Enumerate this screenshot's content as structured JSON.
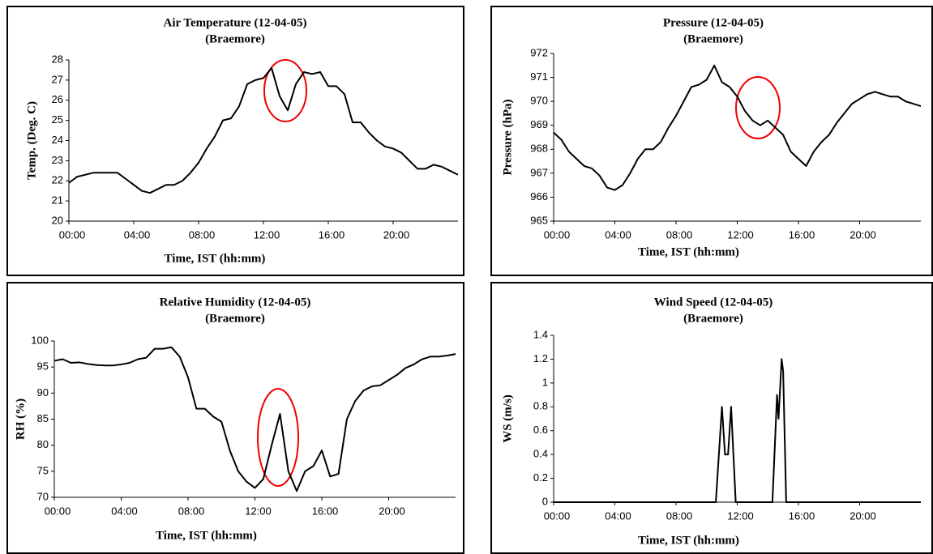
{
  "chart_data": [
    {
      "type": "line",
      "title": "Air Temperature (12-04-05)",
      "subtitle": "(Braemore)",
      "x_label": "Time, IST (hh:mm)",
      "y_label": "Temp. (Deg. C)",
      "x": [
        0,
        0.5,
        1,
        1.5,
        2,
        2.5,
        3,
        3.5,
        4,
        4.5,
        5,
        5.5,
        6,
        6.5,
        7,
        7.5,
        8,
        8.5,
        9,
        9.5,
        10,
        10.5,
        11,
        11.5,
        12,
        12.5,
        13,
        13.5,
        14,
        14.5,
        15,
        15.5,
        16,
        16.5,
        17,
        17.5,
        18,
        18.5,
        19,
        19.5,
        20,
        20.5,
        21,
        21.5,
        22,
        22.5,
        23,
        23.5,
        24
      ],
      "values": [
        21.9,
        22.2,
        22.3,
        22.4,
        22.4,
        22.4,
        22.4,
        22.1,
        21.8,
        21.5,
        21.4,
        21.6,
        21.8,
        21.8,
        22.0,
        22.4,
        22.9,
        23.6,
        24.2,
        25.0,
        25.1,
        25.7,
        26.8,
        27.0,
        27.1,
        27.6,
        26.2,
        25.5,
        26.8,
        27.4,
        27.3,
        27.4,
        26.7,
        26.7,
        26.3,
        24.9,
        24.9,
        24.4,
        24.0,
        23.7,
        23.6,
        23.4,
        23.0,
        22.6,
        22.6,
        22.8,
        22.7,
        22.5,
        22.3
      ],
      "color": "#000000",
      "xlim": [
        0,
        24
      ],
      "xticks": [
        {
          "value": 0,
          "label": "00:00"
        },
        {
          "value": 4,
          "label": "04:00"
        },
        {
          "value": 8,
          "label": "08:00"
        },
        {
          "value": 12,
          "label": "12:00"
        },
        {
          "value": 16,
          "label": "16:00"
        },
        {
          "value": 20,
          "label": "20:00"
        }
      ],
      "ylim": [
        20,
        28
      ],
      "yticks": [
        20,
        21,
        22,
        23,
        24,
        25,
        26,
        27,
        28
      ],
      "grid": false
    },
    {
      "type": "line",
      "title": "Pressure (12-04-05)",
      "subtitle": "(Braemore)",
      "x_label": "Time, IST (hh:mm)",
      "y_label": "Pressure (hPa)",
      "x": [
        0,
        0.5,
        1,
        1.5,
        2,
        2.5,
        3,
        3.5,
        4,
        4.5,
        5,
        5.5,
        6,
        6.5,
        7,
        7.5,
        8,
        8.5,
        9,
        9.5,
        10,
        10.5,
        11,
        11.5,
        12,
        12.5,
        13,
        13.5,
        14,
        14.5,
        15,
        15.5,
        16,
        16.5,
        17,
        17.5,
        18,
        18.5,
        19,
        19.5,
        20,
        20.5,
        21,
        21.5,
        22,
        22.5,
        23,
        23.5,
        24
      ],
      "values": [
        968.7,
        968.4,
        967.9,
        967.6,
        967.3,
        967.2,
        966.9,
        966.4,
        966.3,
        966.5,
        967.0,
        967.6,
        968.0,
        968.0,
        968.3,
        968.9,
        969.4,
        970.0,
        970.6,
        970.7,
        970.9,
        971.5,
        970.8,
        970.6,
        970.2,
        969.6,
        969.2,
        969.0,
        969.2,
        968.9,
        968.6,
        967.9,
        967.6,
        967.3,
        967.9,
        968.3,
        968.6,
        969.1,
        969.5,
        969.9,
        970.1,
        970.3,
        970.4,
        970.3,
        970.2,
        970.2,
        970.0,
        969.9,
        969.8
      ],
      "color": "#000000",
      "xlim": [
        0,
        24
      ],
      "xticks": [
        {
          "value": 0,
          "label": "00:00"
        },
        {
          "value": 4,
          "label": "04:00"
        },
        {
          "value": 8,
          "label": "08:00"
        },
        {
          "value": 12,
          "label": "12:00"
        },
        {
          "value": 16,
          "label": "16:00"
        },
        {
          "value": 20,
          "label": "20:00"
        }
      ],
      "ylim": [
        965,
        972
      ],
      "yticks": [
        965,
        966,
        967,
        968,
        969,
        970,
        971,
        972
      ],
      "grid": false
    },
    {
      "type": "line",
      "title": "Relative Humidity (12-04-05)",
      "subtitle": "(Braemore)",
      "x_label": "Time, IST (hh:mm)",
      "y_label": "RH (%)",
      "x": [
        0,
        0.5,
        1,
        1.5,
        2,
        2.5,
        3,
        3.5,
        4,
        4.5,
        5,
        5.5,
        6,
        6.5,
        7,
        7.5,
        8,
        8.5,
        9,
        9.5,
        10,
        10.5,
        11,
        11.5,
        12,
        12.5,
        13,
        13.5,
        14,
        14.5,
        15,
        15.5,
        16,
        16.5,
        17,
        17.5,
        18,
        18.5,
        19,
        19.5,
        20,
        20.5,
        21,
        21.5,
        22,
        22.5,
        23,
        23.5,
        24
      ],
      "values": [
        96.2,
        96.5,
        95.8,
        95.9,
        95.6,
        95.4,
        95.3,
        95.3,
        95.5,
        95.8,
        96.5,
        96.8,
        98.5,
        98.5,
        98.8,
        97.0,
        93.0,
        87.0,
        87.0,
        85.5,
        84.5,
        79.0,
        75.0,
        73.0,
        71.8,
        73.5,
        80.0,
        86.0,
        75.0,
        71.2,
        75.0,
        76.0,
        79.0,
        74.0,
        74.5,
        85.0,
        88.5,
        90.5,
        91.3,
        91.5,
        92.5,
        93.5,
        94.8,
        95.5,
        96.5,
        97.0,
        97.0,
        97.2,
        97.5
      ],
      "color": "#000000",
      "xlim": [
        0,
        24
      ],
      "xticks": [
        {
          "value": 0,
          "label": "00:00"
        },
        {
          "value": 4,
          "label": "04:00"
        },
        {
          "value": 8,
          "label": "08:00"
        },
        {
          "value": 12,
          "label": "12:00"
        },
        {
          "value": 16,
          "label": "16:00"
        },
        {
          "value": 20,
          "label": "20:00"
        }
      ],
      "ylim": [
        70,
        100
      ],
      "yticks": [
        70,
        75,
        80,
        85,
        90,
        95,
        100
      ],
      "grid": false
    },
    {
      "type": "line",
      "title": "Wind Speed (12-04-05)",
      "subtitle": "(Braemore)",
      "x_label": "Time, IST (hh:mm)",
      "y_label": "WS (m/s)",
      "x": [
        0,
        10.6,
        10.8,
        11.0,
        11.2,
        11.4,
        11.6,
        11.9,
        14.3,
        14.5,
        14.6,
        14.7,
        14.9,
        15.0,
        15.2,
        24
      ],
      "values": [
        0,
        0,
        0.4,
        0.8,
        0.4,
        0.4,
        0.8,
        0,
        0,
        0.6,
        0.9,
        0.7,
        1.2,
        1.1,
        0,
        0
      ],
      "color": "#000000",
      "xlim": [
        0,
        24
      ],
      "xticks": [
        {
          "value": 0,
          "label": "00:00"
        },
        {
          "value": 4,
          "label": "04:00"
        },
        {
          "value": 8,
          "label": "08:00"
        },
        {
          "value": 12,
          "label": "12:00"
        },
        {
          "value": 16,
          "label": "16:00"
        },
        {
          "value": 20,
          "label": "20:00"
        }
      ],
      "ylim": [
        0,
        1.4
      ],
      "yticks": [
        0,
        0.2,
        0.4,
        0.6,
        0.8,
        1,
        1.2,
        1.4
      ],
      "grid": false
    }
  ]
}
